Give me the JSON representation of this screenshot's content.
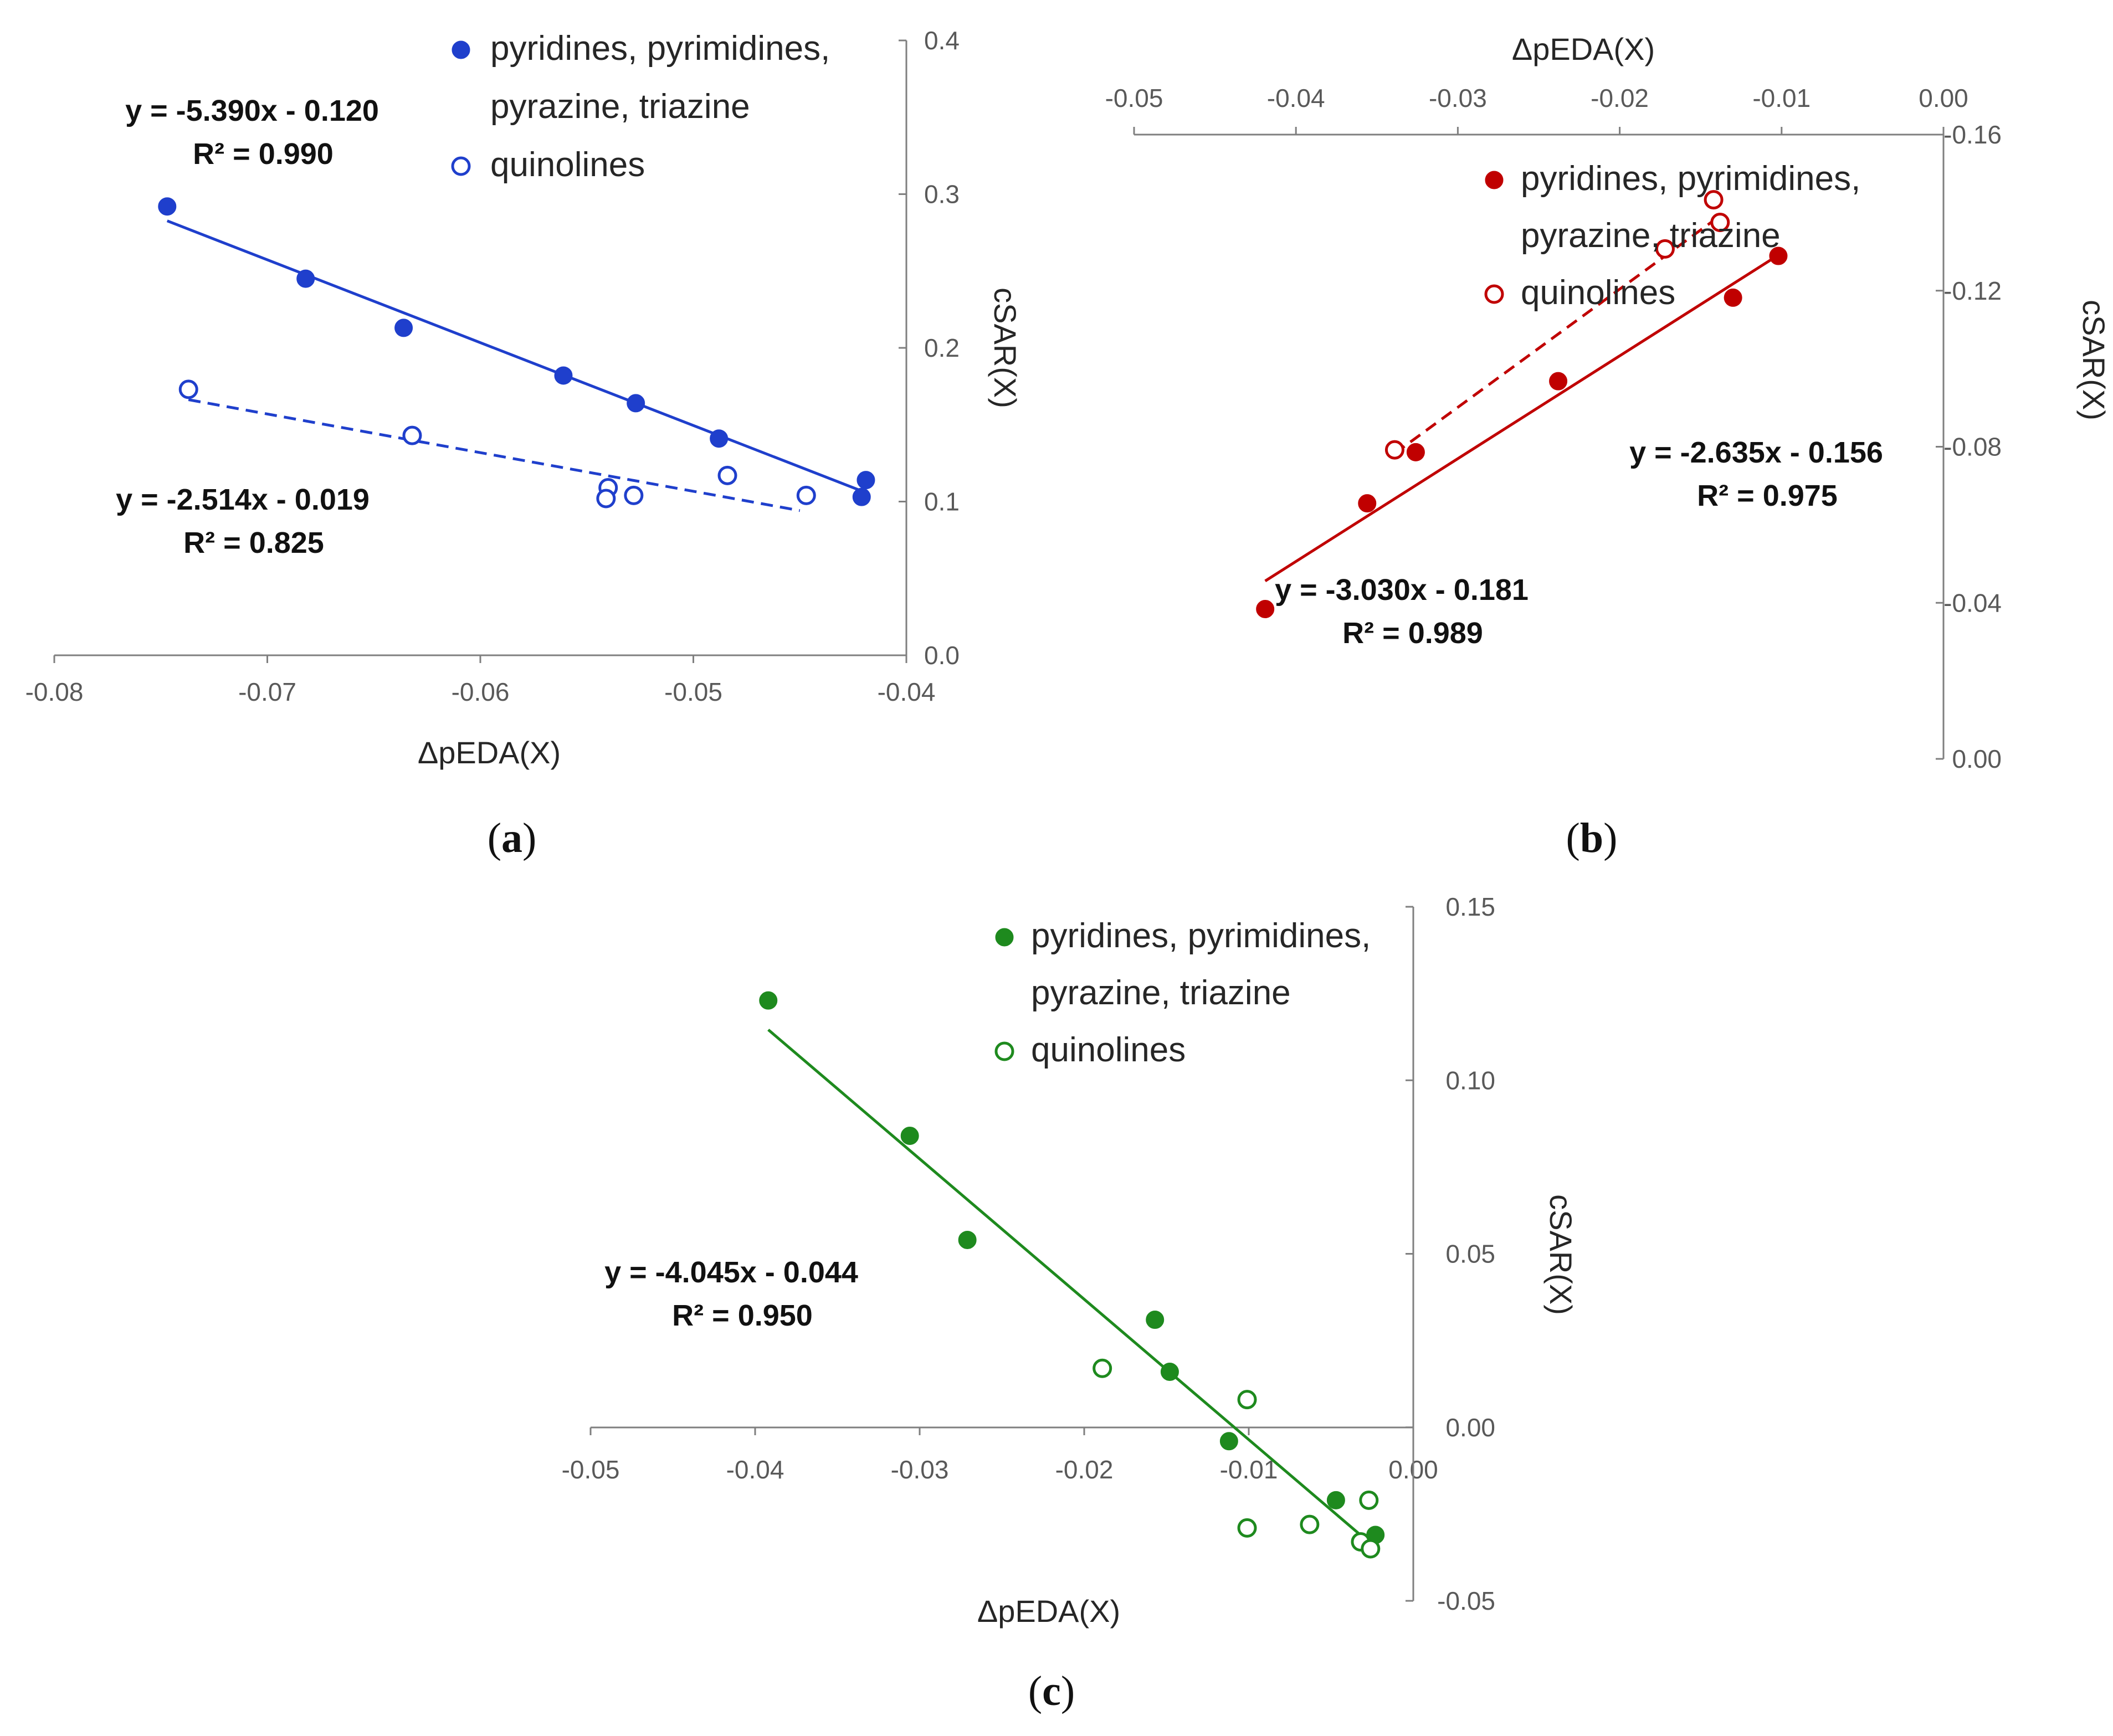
{
  "chart_data": [
    {
      "id": "a",
      "type": "scatter",
      "caption": "a",
      "xlabel": "ΔpEDA(X)",
      "ylabel": "cSAR(X)",
      "xlim": [
        -0.08,
        -0.04
      ],
      "ylim": [
        0.0,
        0.4
      ],
      "xticks": [
        -0.08,
        -0.07,
        -0.06,
        -0.05,
        -0.04
      ],
      "xtick_labels": [
        "-0.08",
        "-0.07",
        "-0.06",
        "-0.05",
        "-0.04"
      ],
      "yticks": [
        0.0,
        0.1,
        0.2,
        0.3,
        0.4
      ],
      "ytick_labels": [
        "0.0",
        "0.1",
        "0.2",
        "0.3",
        "0.4"
      ],
      "x_axis_position": "bottom",
      "y_axis_position": "right",
      "color": "#1f3fcc",
      "legend": [
        "pyridines, pyrimidines,",
        "pyrazine, triazine",
        "quinolines"
      ],
      "series": [
        {
          "name": "pyridines, pyrimidines, pyrazine, triazine",
          "marker": "filled",
          "x": [
            -0.0747,
            -0.0682,
            -0.0636,
            -0.0561,
            -0.0527,
            -0.0488,
            -0.0419,
            -0.0421
          ],
          "y": [
            0.292,
            0.245,
            0.213,
            0.182,
            0.164,
            0.141,
            0.114,
            0.103
          ],
          "fit": {
            "slope": -5.39,
            "intercept": -0.12,
            "x_range": [
              -0.0747,
              -0.0419
            ],
            "dashed": false
          },
          "equation": "y = -5.390x - 0.120",
          "r2": "R² = 0.990"
        },
        {
          "name": "quinolines",
          "marker": "open",
          "x": [
            -0.0737,
            -0.0632,
            -0.054,
            -0.0541,
            -0.0528,
            -0.0484,
            -0.0447
          ],
          "y": [
            0.173,
            0.143,
            0.109,
            0.102,
            0.104,
            0.117,
            0.104
          ],
          "fit": {
            "slope": -2.514,
            "intercept": -0.019,
            "x_range": [
              -0.0737,
              -0.045
            ],
            "dashed": true
          },
          "equation": "y = -2.514x - 0.019",
          "r2": "R² = 0.825"
        }
      ]
    },
    {
      "id": "b",
      "type": "scatter",
      "caption": "b",
      "xlabel": "ΔpEDA(X)",
      "ylabel": "cSAR(X)",
      "xlim": [
        -0.05,
        0.0
      ],
      "ylim": [
        -0.16,
        0.0
      ],
      "xticks": [
        -0.05,
        -0.04,
        -0.03,
        -0.02,
        -0.01,
        0.0
      ],
      "xtick_labels": [
        "-0.05",
        "-0.04",
        "-0.03",
        "-0.02",
        "-0.01",
        "0.00"
      ],
      "yticks": [
        0.0,
        -0.04,
        -0.08,
        -0.12,
        -0.16
      ],
      "ytick_labels": [
        "0.00",
        "-0.04",
        "-0.08",
        "-0.12",
        "-0.16"
      ],
      "x_axis_position": "top",
      "y_axis_position": "right",
      "color": "#c00000",
      "legend": [
        "pyridines, pyrimidines,",
        "pyrazine, triazine",
        "quinolines"
      ],
      "series": [
        {
          "name": "pyridines, pyrimidines, pyrazine, triazine",
          "marker": "filled",
          "x": [
            -0.0419,
            -0.0356,
            -0.0326,
            -0.0238,
            -0.013,
            -0.0102
          ],
          "y": [
            -0.0384,
            -0.0655,
            -0.0786,
            -0.0968,
            -0.1182,
            -0.1289
          ],
          "fit": {
            "slope": -2.635,
            "intercept": -0.156,
            "x_range": [
              -0.0419,
              -0.0102
            ],
            "dashed": false
          },
          "equation": "y = -2.635x - 0.156",
          "r2": "R² = 0.975"
        },
        {
          "name": "quinolines",
          "marker": "open",
          "x": [
            -0.0339,
            -0.0172,
            -0.0138,
            -0.0142
          ],
          "y": [
            -0.0792,
            -0.1307,
            -0.1375,
            -0.1433
          ],
          "fit": {
            "slope": -3.03,
            "intercept": -0.181,
            "x_range": [
              -0.0339,
              -0.0138
            ],
            "dashed": true
          },
          "equation": "y = -3.030x - 0.181",
          "r2": "R² = 0.989"
        }
      ]
    },
    {
      "id": "c",
      "type": "scatter",
      "caption": "c",
      "xlabel": "ΔpEDA(X)",
      "ylabel": "cSAR(X)",
      "xlim": [
        -0.05,
        0.0
      ],
      "ylim": [
        -0.05,
        0.15
      ],
      "xticks": [
        -0.05,
        -0.04,
        -0.03,
        -0.02,
        -0.01,
        0.0
      ],
      "xtick_labels": [
        "-0.05",
        "-0.04",
        "-0.03",
        "-0.02",
        "-0.01",
        "0.00"
      ],
      "yticks": [
        -0.05,
        0.0,
        0.05,
        0.1,
        0.15
      ],
      "ytick_labels": [
        "-0.05",
        "0.00",
        "0.05",
        "0.10",
        "0.15"
      ],
      "x_axis_position": "zero",
      "y_axis_position": "right",
      "color": "#1e8a1e",
      "legend": [
        "pyridines, pyrimidines,",
        "pyrazine, triazine",
        "quinolines"
      ],
      "series": [
        {
          "name": "pyridines, pyrimidines, pyrazine, triazine",
          "marker": "filled",
          "x": [
            -0.0392,
            -0.0306,
            -0.0271,
            -0.0157,
            -0.0148,
            -0.0112,
            -0.0047,
            -0.0023
          ],
          "y": [
            0.123,
            0.084,
            0.054,
            0.031,
            0.016,
            -0.004,
            -0.021,
            -0.031
          ],
          "fit": {
            "slope": -4.045,
            "intercept": -0.044,
            "x_range": [
              -0.0392,
              -0.0023
            ],
            "dashed": false
          },
          "equation": "y = -4.045x - 0.044",
          "r2": "R² = 0.950"
        },
        {
          "name": "quinolines",
          "marker": "open",
          "x": [
            -0.0189,
            -0.0101,
            -0.0101,
            -0.0063,
            -0.0032,
            -0.0027,
            -0.0026
          ],
          "y": [
            0.017,
            0.008,
            -0.029,
            -0.028,
            -0.033,
            -0.021,
            -0.035
          ],
          "equation": "",
          "r2": ""
        }
      ]
    }
  ]
}
